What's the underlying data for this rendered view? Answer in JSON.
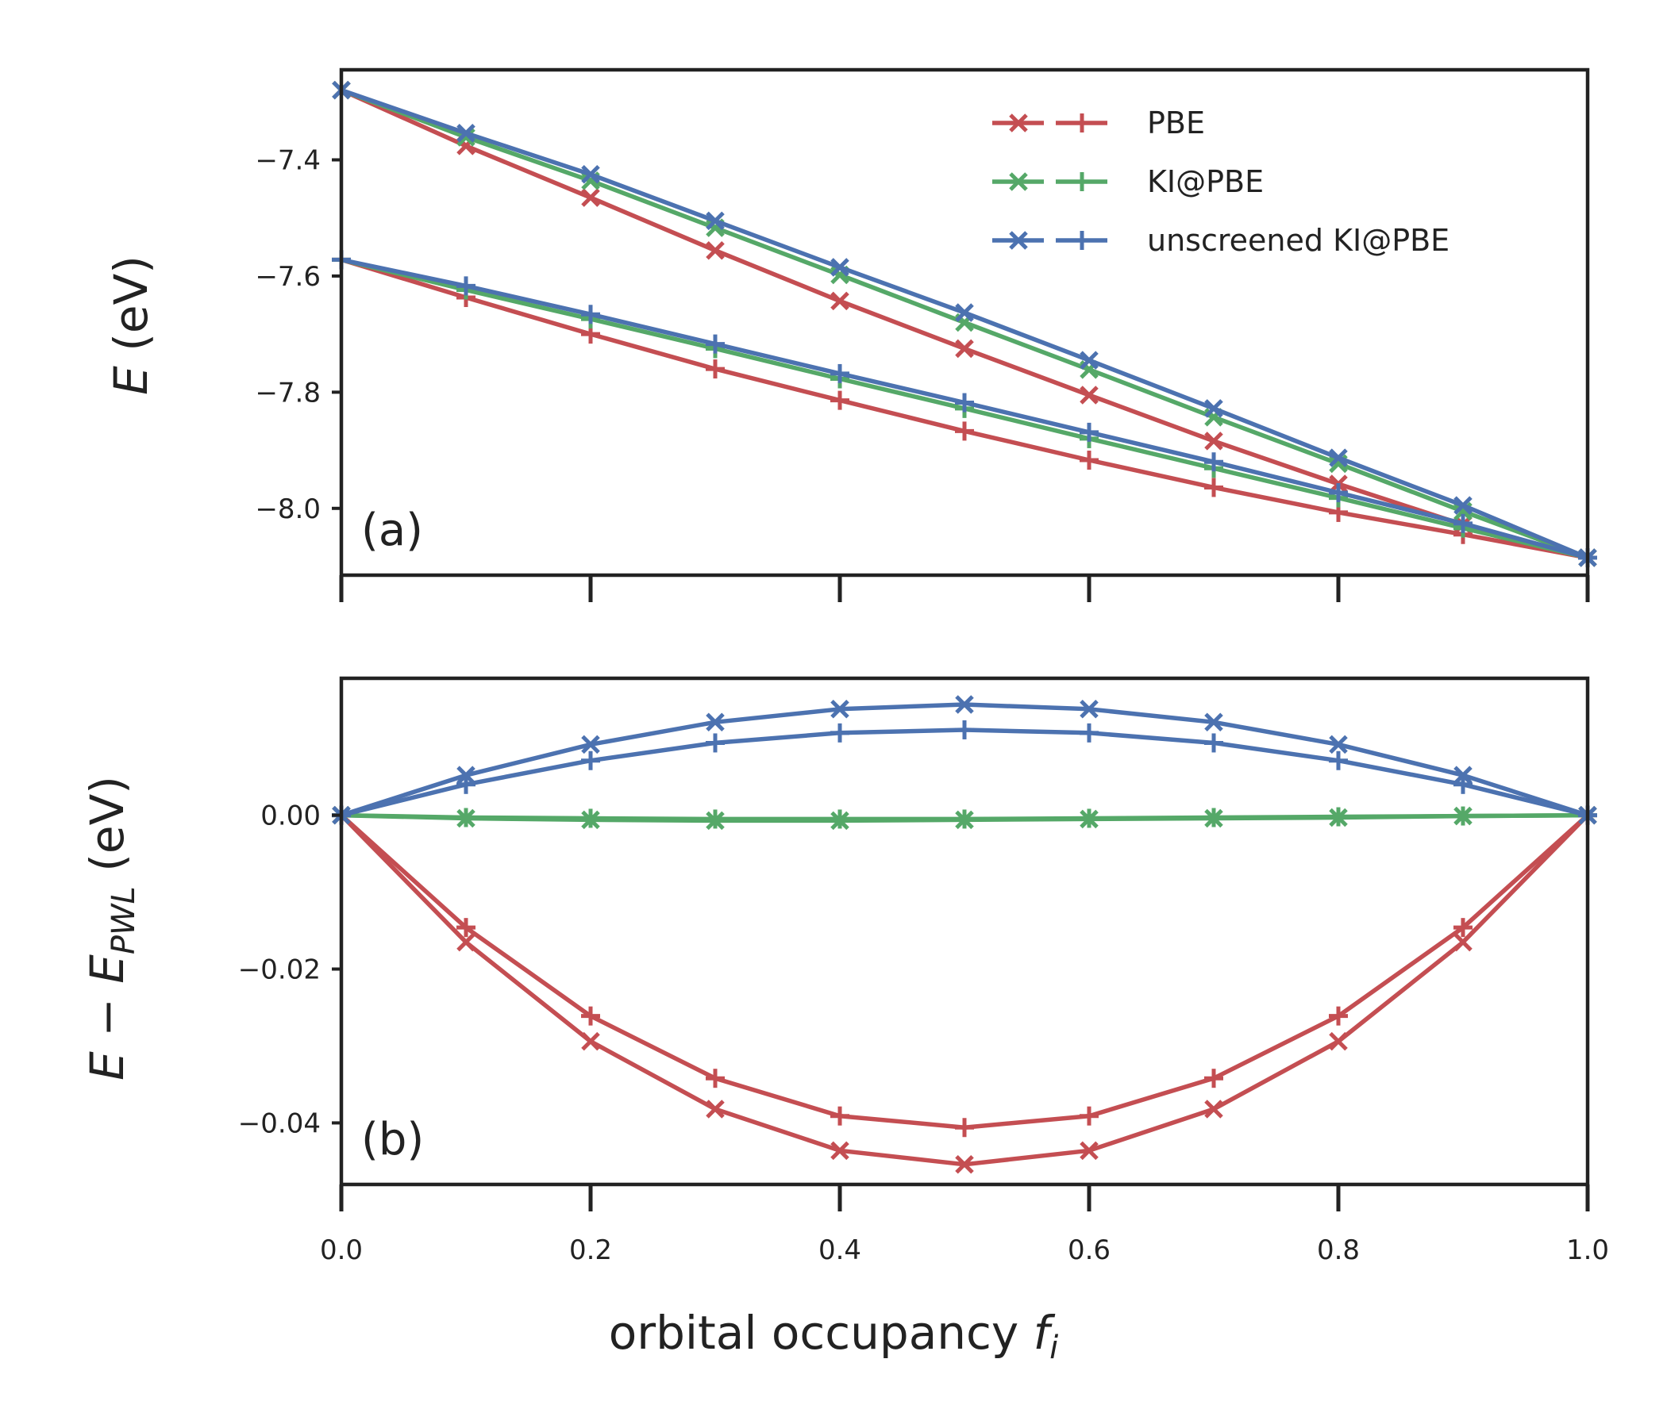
{
  "colors": {
    "PBE": "#c44e52",
    "KI@PBE": "#55a868",
    "unscreened KI@PBE": "#4c72b0",
    "axes": "#222222"
  },
  "legend": {
    "placement": "top-right",
    "entries": [
      "PBE",
      "KI@PBE",
      "unscreened KI@PBE"
    ],
    "markers": [
      "x",
      "+"
    ]
  },
  "chart_data": [
    {
      "type": "line",
      "panel_label": "(a)",
      "ylabel_main": "E",
      "ylabel_unit": "(eV)",
      "xlim": [
        0.0,
        1.0
      ],
      "ylim": [
        -8.115,
        -7.245
      ],
      "yticks": [
        -7.4,
        -7.6,
        -7.8,
        -8.0
      ],
      "ytick_labels": [
        "−7.4",
        "−7.6",
        "−7.8",
        "−8.0"
      ],
      "grid": false,
      "x": [
        0.0,
        0.1,
        0.2,
        0.3,
        0.4,
        0.5,
        0.6,
        0.7,
        0.8,
        0.9,
        1.0
      ],
      "series": [
        {
          "name": "PBE",
          "marker": "x",
          "values": [
            -7.28,
            -7.376,
            -7.465,
            -7.556,
            -7.643,
            -7.725,
            -7.805,
            -7.884,
            -7.958,
            -8.028,
            -8.085
          ]
        },
        {
          "name": "PBE",
          "marker": "+",
          "values": [
            -7.572,
            -7.637,
            -7.7,
            -7.76,
            -7.814,
            -7.867,
            -7.917,
            -7.964,
            -8.007,
            -8.045,
            -8.085
          ]
        },
        {
          "name": "KI@PBE",
          "marker": "x",
          "values": [
            -7.28,
            -7.361,
            -7.436,
            -7.517,
            -7.598,
            -7.68,
            -7.761,
            -7.843,
            -7.923,
            -8.005,
            -8.085
          ]
        },
        {
          "name": "KI@PBE",
          "marker": "+",
          "values": [
            -7.572,
            -7.624,
            -7.674,
            -7.725,
            -7.777,
            -7.828,
            -7.88,
            -7.931,
            -7.982,
            -8.034,
            -8.085
          ]
        },
        {
          "name": "unscreened KI@PBE",
          "marker": "x",
          "values": [
            -7.28,
            -7.354,
            -7.425,
            -7.505,
            -7.585,
            -7.663,
            -7.745,
            -7.828,
            -7.913,
            -7.995,
            -8.085
          ]
        },
        {
          "name": "unscreened KI@PBE",
          "marker": "+",
          "values": [
            -7.572,
            -7.617,
            -7.666,
            -7.717,
            -7.768,
            -7.818,
            -7.869,
            -7.92,
            -7.973,
            -8.026,
            -8.085
          ]
        }
      ]
    },
    {
      "type": "line",
      "panel_label": "(b)",
      "ylabel_main": "E − E",
      "ylabel_sub": "PWL",
      "ylabel_unit": "(eV)",
      "xlabel_main": "orbital occupancy ",
      "xlabel_var": "f",
      "xlabel_sub": "i",
      "xlim": [
        0.0,
        1.0
      ],
      "ylim": [
        -0.048,
        0.0178
      ],
      "yticks": [
        0.0,
        -0.02,
        -0.04
      ],
      "ytick_labels": [
        "0.00",
        "−0.02",
        "−0.04"
      ],
      "xticks": [
        0.0,
        0.2,
        0.4,
        0.6,
        0.8,
        1.0
      ],
      "xtick_labels": [
        "0.0",
        "0.2",
        "0.4",
        "0.6",
        "0.8",
        "1.0"
      ],
      "grid": false,
      "x": [
        0.0,
        0.1,
        0.2,
        0.3,
        0.4,
        0.5,
        0.6,
        0.7,
        0.8,
        0.9,
        1.0
      ],
      "series": [
        {
          "name": "PBE",
          "marker": "x",
          "values": [
            0.0,
            -0.0165,
            -0.0294,
            -0.0382,
            -0.0436,
            -0.0454,
            -0.0436,
            -0.0382,
            -0.0294,
            -0.0165,
            0.0
          ]
        },
        {
          "name": "PBE",
          "marker": "+",
          "values": [
            0.0,
            -0.0146,
            -0.0261,
            -0.0342,
            -0.0391,
            -0.0406,
            -0.0391,
            -0.0342,
            -0.0261,
            -0.0146,
            0.0
          ]
        },
        {
          "name": "KI@PBE",
          "marker": "x",
          "values": [
            0.0,
            -0.0004,
            -0.0006,
            -0.0007,
            -0.0007,
            -0.0006,
            -0.0005,
            -0.0004,
            -0.0003,
            -0.0001,
            0.0
          ]
        },
        {
          "name": "KI@PBE",
          "marker": "+",
          "values": [
            0.0,
            -0.0003,
            -0.0004,
            -0.0005,
            -0.0005,
            -0.0005,
            -0.0004,
            -0.0003,
            -0.0002,
            -0.0001,
            0.0
          ]
        },
        {
          "name": "unscreened KI@PBE",
          "marker": "x",
          "values": [
            0.0,
            0.0052,
            0.0092,
            0.0121,
            0.0138,
            0.0144,
            0.0138,
            0.0121,
            0.0092,
            0.0052,
            0.0
          ]
        },
        {
          "name": "unscreened KI@PBE",
          "marker": "+",
          "values": [
            0.0,
            0.004,
            0.0071,
            0.0094,
            0.0107,
            0.0111,
            0.0107,
            0.0094,
            0.0071,
            0.004,
            0.0
          ]
        }
      ]
    }
  ]
}
